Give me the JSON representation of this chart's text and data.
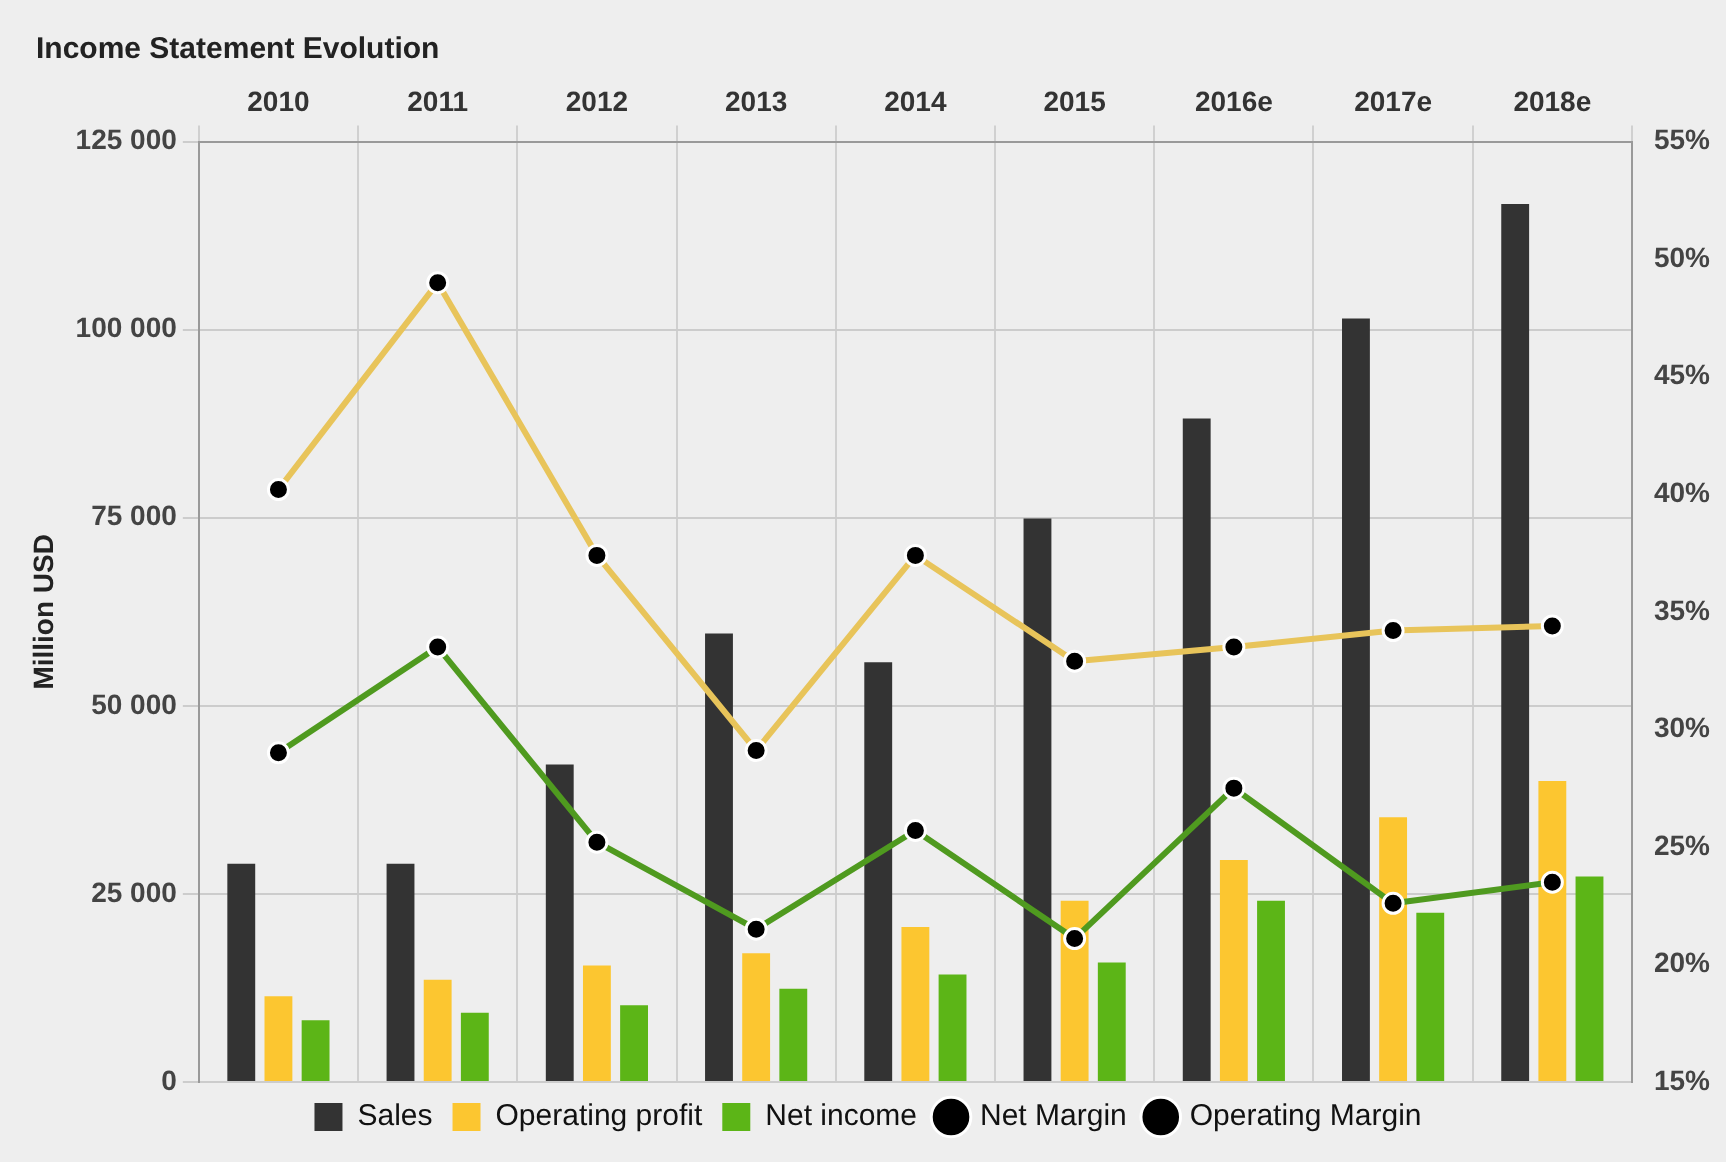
{
  "chart_data": {
    "type": "bar",
    "title": "Income Statement Evolution",
    "ylabel": "Million USD",
    "categories": [
      "2010",
      "2011",
      "2012",
      "2013",
      "2014",
      "2015",
      "2016e",
      "2017e",
      "2018e"
    ],
    "series": [
      {
        "name": "Sales",
        "color": "#333333",
        "values": [
          29000,
          29000,
          42200,
          59600,
          55800,
          74900,
          88200,
          101500,
          116700
        ]
      },
      {
        "name": "Operating profit",
        "color": "#fcc630",
        "values": [
          11400,
          13600,
          15500,
          17100,
          20600,
          24100,
          29500,
          35200,
          40000
        ]
      },
      {
        "name": "Net income",
        "color": "#5cb517",
        "values": [
          8200,
          9200,
          10200,
          12400,
          14300,
          15900,
          24100,
          22500,
          27300
        ]
      },
      {
        "name": "Net Margin",
        "type": "line",
        "axis": "y2",
        "color": "#4f9a1f",
        "values": [
          29.0,
          33.5,
          25.2,
          21.5,
          25.7,
          21.1,
          27.5,
          22.6,
          23.5
        ]
      },
      {
        "name": "Operating Margin",
        "type": "line",
        "axis": "y2",
        "color": "#e8c45a",
        "values": [
          40.2,
          49.0,
          37.4,
          29.1,
          37.4,
          32.9,
          33.5,
          34.2,
          34.4
        ]
      }
    ],
    "ylim": [
      0,
      125000
    ],
    "yticks": [
      {
        "value": 0,
        "label": "0"
      },
      {
        "value": 25000,
        "label": "25 000"
      },
      {
        "value": 50000,
        "label": "50 000"
      },
      {
        "value": 75000,
        "label": "75 000"
      },
      {
        "value": 100000,
        "label": "100 000"
      },
      {
        "value": 125000,
        "label": "125 000"
      }
    ],
    "y2lim": [
      15,
      55
    ],
    "y2ticks": [
      {
        "value": 15,
        "label": "15%"
      },
      {
        "value": 20,
        "label": "20%"
      },
      {
        "value": 25,
        "label": "25%"
      },
      {
        "value": 30,
        "label": "30%"
      },
      {
        "value": 35,
        "label": "35%"
      },
      {
        "value": 40,
        "label": "40%"
      },
      {
        "value": 45,
        "label": "45%"
      },
      {
        "value": 50,
        "label": "50%"
      },
      {
        "value": 55,
        "label": "55%"
      }
    ],
    "grid": true,
    "legend": "bottom",
    "marker": "circle"
  }
}
